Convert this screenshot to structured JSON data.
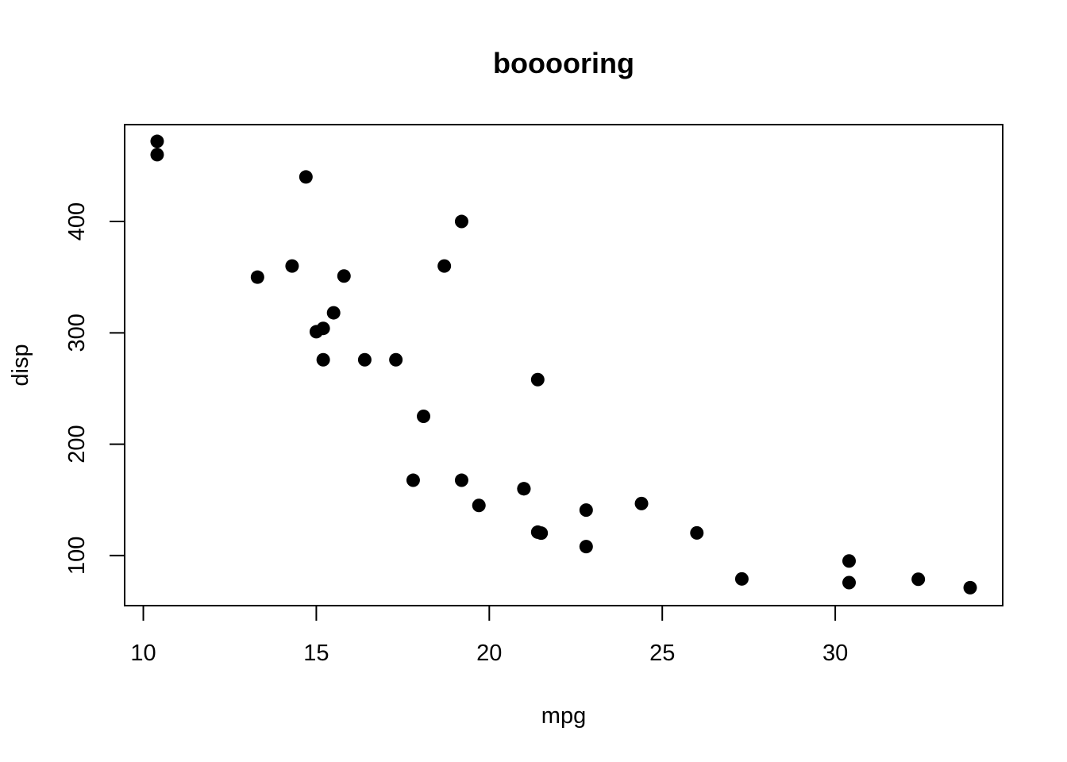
{
  "chart_data": {
    "type": "scatter",
    "title": "booooring",
    "xlabel": "mpg",
    "ylabel": "disp",
    "xlim": [
      9.46,
      34.84
    ],
    "ylim": [
      55.0,
      487.0
    ],
    "xticks": [
      10,
      15,
      20,
      25,
      30
    ],
    "yticks": [
      100,
      200,
      300,
      400
    ],
    "grid": false,
    "legend": "none",
    "marker": "filled-circle",
    "color": "#000000",
    "points": [
      {
        "x": 21.0,
        "y": 160.0
      },
      {
        "x": 21.0,
        "y": 160.0
      },
      {
        "x": 22.8,
        "y": 108.0
      },
      {
        "x": 21.4,
        "y": 258.0
      },
      {
        "x": 18.7,
        "y": 360.0
      },
      {
        "x": 18.1,
        "y": 225.0
      },
      {
        "x": 14.3,
        "y": 360.0
      },
      {
        "x": 24.4,
        "y": 146.7
      },
      {
        "x": 22.8,
        "y": 140.8
      },
      {
        "x": 19.2,
        "y": 167.6
      },
      {
        "x": 17.8,
        "y": 167.6
      },
      {
        "x": 16.4,
        "y": 275.8
      },
      {
        "x": 17.3,
        "y": 275.8
      },
      {
        "x": 15.2,
        "y": 275.8
      },
      {
        "x": 10.4,
        "y": 472.0
      },
      {
        "x": 10.4,
        "y": 460.0
      },
      {
        "x": 14.7,
        "y": 440.0
      },
      {
        "x": 32.4,
        "y": 78.7
      },
      {
        "x": 30.4,
        "y": 75.7
      },
      {
        "x": 33.9,
        "y": 71.1
      },
      {
        "x": 21.5,
        "y": 120.1
      },
      {
        "x": 15.5,
        "y": 318.0
      },
      {
        "x": 15.2,
        "y": 304.0
      },
      {
        "x": 13.3,
        "y": 350.0
      },
      {
        "x": 19.2,
        "y": 400.0
      },
      {
        "x": 27.3,
        "y": 79.0
      },
      {
        "x": 26.0,
        "y": 120.3
      },
      {
        "x": 30.4,
        "y": 95.1
      },
      {
        "x": 15.8,
        "y": 351.0
      },
      {
        "x": 19.7,
        "y": 145.0
      },
      {
        "x": 15.0,
        "y": 301.0
      },
      {
        "x": 21.4,
        "y": 121.0
      }
    ]
  }
}
